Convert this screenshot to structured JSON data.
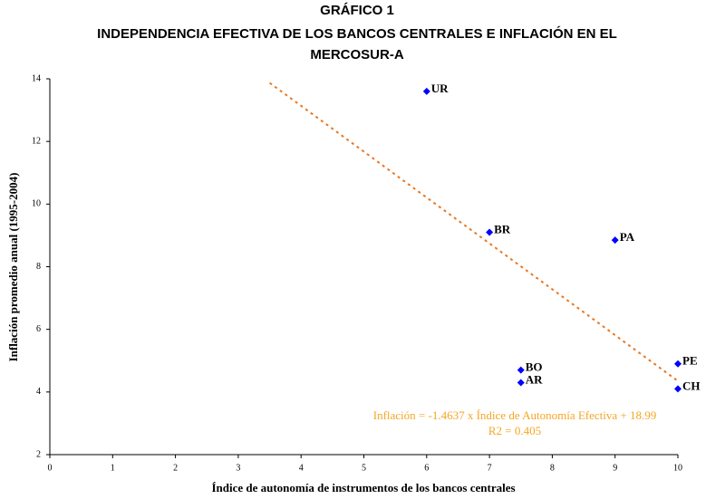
{
  "chart_data": {
    "type": "scatter",
    "title": [
      "GRÁFICO 1",
      "INDEPENDENCIA EFECTIVA DE LOS BANCOS CENTRALES E INFLACIÓN EN EL",
      "MERCOSUR-A"
    ],
    "xlabel": "Índice de autonomía de instrumentos de los bancos centrales",
    "ylabel": "Inflación promedio anual (1995-2004)",
    "xlim": [
      0,
      10
    ],
    "xticks": [
      0,
      1,
      2,
      3,
      4,
      5,
      6,
      7,
      8,
      9,
      10
    ],
    "ylim": [
      2,
      14
    ],
    "yticks": [
      2,
      4,
      6,
      8,
      10,
      12,
      14
    ],
    "series": [
      {
        "color": "#0000ff",
        "labels": [
          "UR",
          "BR",
          "PA",
          "BO",
          "AR",
          "PE",
          "CH"
        ],
        "x": [
          6,
          7,
          9,
          7.5,
          7.5,
          10,
          10
        ],
        "values": [
          13.6,
          9.1,
          8.85,
          4.7,
          4.3,
          4.9,
          4.1
        ]
      }
    ],
    "trendline": {
      "color": "#e87722",
      "x": [
        3.5,
        10
      ],
      "y": [
        13.87,
        4.35
      ]
    },
    "annotations": [
      "Inflación  = -1.4637 x Índice de Autonomía Efectiva + 18.99",
      "R2 = 0.405"
    ]
  }
}
